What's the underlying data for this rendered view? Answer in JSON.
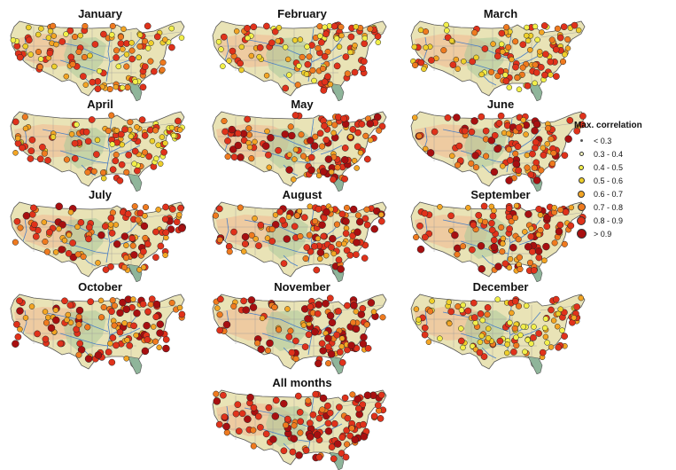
{
  "panels": [
    "January",
    "February",
    "March",
    "April",
    "May",
    "June",
    "July",
    "August",
    "September",
    "October",
    "November",
    "December",
    "All months"
  ],
  "legend": {
    "title": "Max. correlation",
    "classes": [
      {
        "label": "< 0.3",
        "color": "#555555"
      },
      {
        "label": "0.3 - 0.4",
        "color": "#f7f7c0"
      },
      {
        "label": "0.4 - 0.5",
        "color": "#f2ef4a"
      },
      {
        "label": "0.5 - 0.6",
        "color": "#eecf2b"
      },
      {
        "label": "0.6 - 0.7",
        "color": "#f3a524"
      },
      {
        "label": "0.7 - 0.8",
        "color": "#ef7a1f"
      },
      {
        "label": "0.8 - 0.9",
        "color": "#e0321b"
      },
      {
        "label": "> 0.9",
        "color": "#a80f10"
      }
    ]
  },
  "colors": {
    "land": "#e9e3b6",
    "shade": "#efc39a",
    "green": "#a9c89a",
    "rivers": "#4a7fc6",
    "state_lines": "#9a9a9a",
    "florida": "#8fb59a"
  }
}
